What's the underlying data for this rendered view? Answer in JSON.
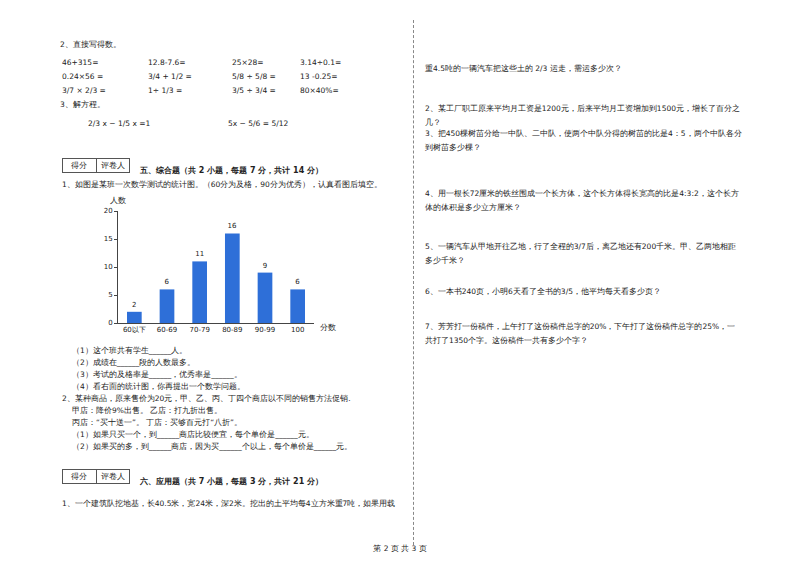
{
  "left": {
    "q2_title": "2、直接写得数。",
    "q2_rows": [
      [
        "46+315=",
        "12.8-7.6=",
        "25×28=",
        "3.14÷0.1="
      ],
      [
        "0.24×56 =",
        "3/4 + 1/2 =",
        "5/8 ÷ 5/8 =",
        "13 -0.25="
      ],
      [
        "3/7 × 2/3 =",
        "1÷ 1/3 =",
        "3/5 ÷ 3/4 =",
        "80×40%="
      ]
    ],
    "q3_title": "3、解方程。",
    "q3_equations": [
      "2/3 x − 1/5 x =1",
      "5x − 5/6 = 5/12"
    ],
    "score_box": [
      "得分",
      "评卷人"
    ],
    "section5_title": "五、综合题（共 2 小题，每题 7 分，共计 14 分）",
    "s5_q1": "1、如图是某班一次数学测试的统计图。（60分为及格，90分为优秀），认真看图后填空。",
    "s5_q1_blanks": [
      "（1）这个班共有学生______人。",
      "（2）成绩在______段的人数最多。",
      "（3）考试的及格率是______，优秀率是______。",
      "（4）看右面的统计图，你再提出一个数学问题。"
    ],
    "s5_q2": [
      "2、某种商品，原来售价为20元，甲、乙、丙、丁四个商店以不同的销售方法促销.",
      "甲店：降价9%出售。      乙店：打九折出售。",
      "丙店：“买十送一”。      丁店：买够百元打“八折”。",
      "（1）如果只买一个，到______商店比较便宜，每个单价是______元。",
      "（2）如果买的多，到______商店，因为买______个以上，每个单价是______元。"
    ],
    "section6_title": "六、应用题（共 7 小题，每题 3 分，共计 21 分）",
    "s6_q1": "1、一个建筑队挖地基，长40.5米，宽24米，深2米。挖出的土平均每4立方米重7吨，如果用载"
  },
  "right": [
    "重4.5吨的一辆汽车把这些土的 2/3 运走，需运多少次？",
    "2、某工厂职工原来平均月工资是1200元，后来平均月工资增加到1500元，增长了百分之几？",
    "3、把450棵树苗分给一中队、二中队，使两个中队分得的树苗的比是4：5，两个中队各分到树苗多少棵？",
    "4、用一根长72厘米的铁丝围成一个长方体，这个长方体得长宽高的比是4:3:2，这个长方体的体积是多少立方厘米？",
    "5、一辆汽车从甲地开往乙地，行了全程的3/7后，离乙地还有200千米。甲、乙两地相距多少千米？",
    "6、一本书240页，小明6天看了全书的3/5，他平均每天看多少页？",
    "7、芳芳打一份稿件，上午打了这份稿件总字的20%，下午打了这份稿件总字的25%，一共打了1350个字。这份稿件一共有多少个字？"
  ],
  "footer": "第 2 页 共 3 页",
  "chart_data": {
    "type": "bar",
    "y_label": "人数",
    "x_label": "分数",
    "categories": [
      "60以下",
      "60-69",
      "70-79",
      "80-89",
      "90-99",
      "100"
    ],
    "values": [
      2,
      6,
      11,
      16,
      9,
      6
    ],
    "color": "#2e6fd8",
    "ylim": [
      0,
      20
    ],
    "yticks": [
      0,
      5,
      10,
      15,
      20
    ],
    "grid": false,
    "data_labels": true
  }
}
